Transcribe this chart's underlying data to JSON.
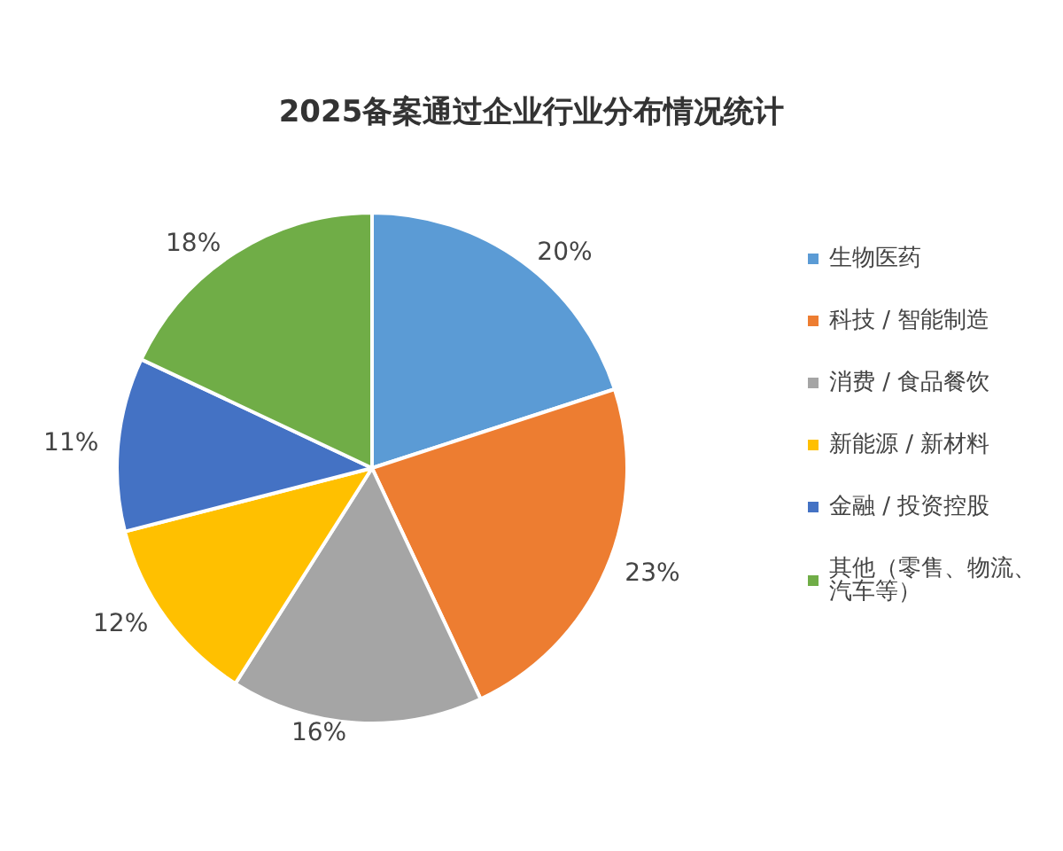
{
  "chart_data": {
    "type": "pie",
    "title": "2025备案通过企业行业分布情况统计",
    "categories": [
      "生物医药",
      "科技 / 智能制造",
      "消费 / 食品餐饮",
      "新能源 / 新材料",
      "金融 / 投资控股",
      "其他（零售、物流、汽车等）"
    ],
    "values": [
      20,
      23,
      16,
      12,
      11,
      18
    ],
    "colors": [
      "#5b9bd5",
      "#ed7d31",
      "#a5a5a5",
      "#ffc000",
      "#4472c4",
      "#70ad47"
    ],
    "value_labels": [
      "20%",
      "23%",
      "16%",
      "12%",
      "11%",
      "18%"
    ],
    "legend": "right"
  }
}
